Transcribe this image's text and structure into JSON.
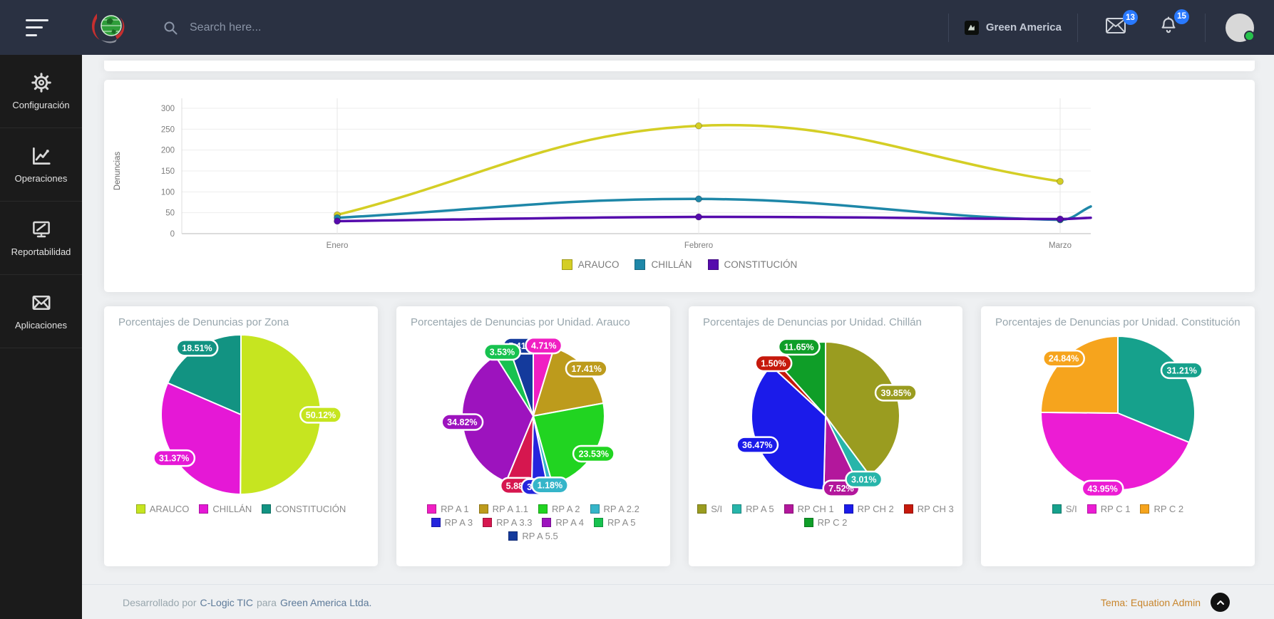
{
  "topbar": {
    "search_placeholder": "Search here...",
    "company_name": "Green America",
    "messages_count": "13",
    "notifications_count": "15",
    "badge_color": "#2979ff"
  },
  "sidebar": {
    "items": [
      {
        "label": "Configuración",
        "icon": "gear-icon"
      },
      {
        "label": "Operaciones",
        "icon": "line-chart-icon"
      },
      {
        "label": "Reportabilidad",
        "icon": "report-monitor-icon"
      },
      {
        "label": "Aplicaciones",
        "icon": "envelope-icon"
      }
    ]
  },
  "footer": {
    "prefix": "Desarrollado por",
    "developer_link": "C-Logic TIC",
    "middle": "para",
    "client_link": "Green America Ltda.",
    "theme": "Tema: Equation Admin"
  },
  "chart_data": [
    {
      "type": "line",
      "title": "",
      "categories": [
        "Enero",
        "Febrero",
        "Marzo"
      ],
      "xlabel": "",
      "ylabel": "Denuncias",
      "ylim": [
        0,
        300
      ],
      "ytick_step": 50,
      "grid": true,
      "legend_position": "bottom",
      "series": [
        {
          "name": "ARAUCO",
          "color": "#d4ce25",
          "values": [
            45,
            258,
            125
          ]
        },
        {
          "name": "CHILLÁN",
          "color": "#1e87a8",
          "values": [
            38,
            83,
            33
          ],
          "edge_tail_value": 65
        },
        {
          "name": "CONSTITUCIÓN",
          "color": "#560bad",
          "values": [
            30,
            40,
            35
          ],
          "edge_tail_value": 38
        }
      ]
    },
    {
      "type": "pie",
      "title": "Porcentajes de Denuncias por Zona",
      "labels": [
        "ARAUCO",
        "CHILLÁN",
        "CONSTITUCIÓN"
      ],
      "values": [
        50.12,
        31.37,
        18.51
      ],
      "colors": [
        "#c6e520",
        "#e518d6",
        "#129382"
      ],
      "value_format": "percent"
    },
    {
      "type": "pie",
      "title": "Porcentajes de Denuncias por Unidad. Arauco",
      "labels": [
        "RP A 1",
        "RP A 1.1",
        "RP A 2",
        "RP A 2.2",
        "RP A 3",
        "RP A 3.3",
        "RP A 4",
        "RP A 5",
        "RP A 5.5"
      ],
      "values": [
        4.71,
        17.41,
        23.53,
        1.18,
        3.53,
        5.88,
        34.82,
        3.53,
        5.41
      ],
      "colors": [
        "#f01fc3",
        "#bd9b1c",
        "#21d421",
        "#35b5c9",
        "#2525dd",
        "#d6174f",
        "#9d13be",
        "#17c24f",
        "#143a9c"
      ],
      "value_format": "percent"
    },
    {
      "type": "pie",
      "title": "Porcentajes de Denuncias por Unidad. Chillán",
      "labels": [
        "S/I",
        "RP A 5",
        "RP CH 1",
        "RP CH 2",
        "RP CH 3",
        "RP C 2"
      ],
      "values": [
        39.85,
        3.01,
        7.52,
        36.47,
        1.5,
        11.65
      ],
      "colors": [
        "#9a9c20",
        "#27b5aa",
        "#b3179c",
        "#1b1bea",
        "#c6190c",
        "#0f9e28"
      ],
      "value_format": "percent"
    },
    {
      "type": "pie",
      "title": "Porcentajes de Denuncias por Unidad. Constitución",
      "labels": [
        "S/I",
        "RP C 1",
        "RP C 2"
      ],
      "values": [
        31.21,
        43.95,
        24.84
      ],
      "colors": [
        "#16a18c",
        "#ec1cd4",
        "#f6a41d"
      ],
      "value_format": "percent"
    }
  ]
}
